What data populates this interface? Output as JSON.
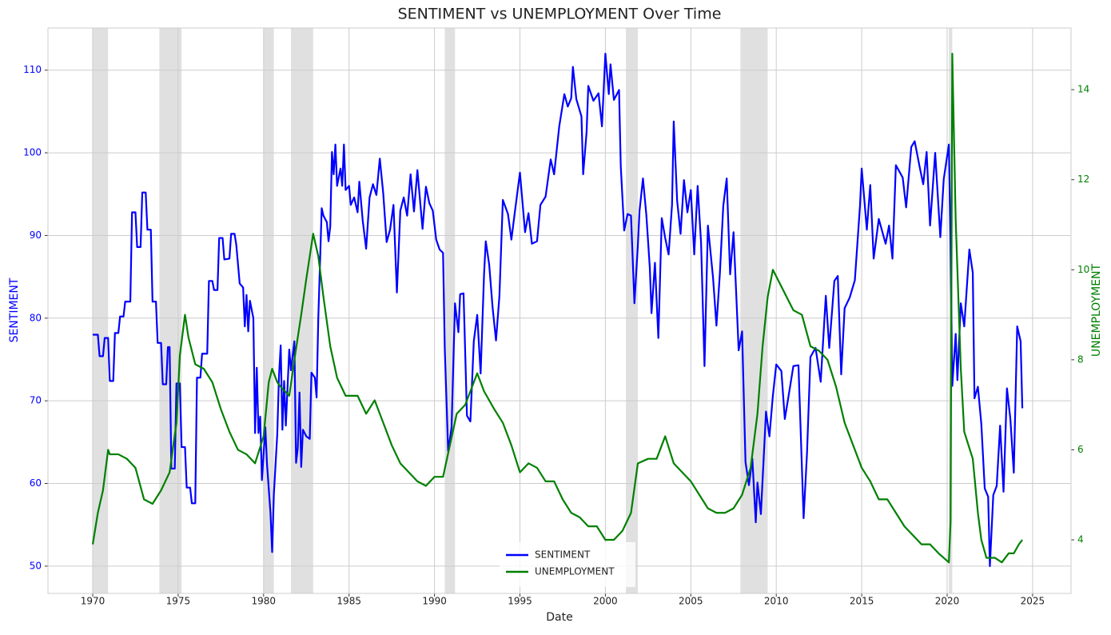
{
  "chart_data": {
    "type": "line",
    "title": "SENTIMENT vs UNEMPLOYMENT Over Time",
    "x_label": "Date",
    "y_label": "SENTIMENT",
    "y2_label": "UNEMPLOYMENT",
    "xlim": [
      1967.38,
      2027.25
    ],
    "ylim": [
      46.7,
      115.1
    ],
    "y2lim": [
      2.81,
      15.37
    ],
    "xticks": [
      1970,
      1975,
      1980,
      1985,
      1990,
      1995,
      2000,
      2005,
      2010,
      2015,
      2020,
      2025
    ],
    "yticks": [
      50,
      60,
      70,
      80,
      90,
      100,
      110
    ],
    "y2ticks": [
      4,
      6,
      8,
      10,
      12,
      14
    ],
    "grid": true,
    "legend": "lower center",
    "recession_color": "#e0e0e0",
    "recessions": [
      [
        1970.0,
        1970.9
      ],
      [
        1973.9,
        1975.2
      ],
      [
        1980.0,
        1980.6
      ],
      [
        1981.6,
        1982.9
      ],
      [
        1990.6,
        1991.2
      ],
      [
        2001.2,
        2001.9
      ],
      [
        2007.9,
        2009.5
      ],
      [
        2020.1,
        2020.3
      ]
    ],
    "series": [
      {
        "name": "SENTIMENT",
        "color": "#0000ff",
        "axis": "y",
        "x": [
          1970.0,
          1970.3,
          1970.4,
          1970.6,
          1970.7,
          1970.9,
          1971.0,
          1971.2,
          1971.3,
          1971.5,
          1971.6,
          1971.8,
          1971.9,
          1972.2,
          1972.3,
          1972.5,
          1972.6,
          1972.8,
          1972.9,
          1973.1,
          1973.2,
          1973.4,
          1973.5,
          1973.7,
          1973.8,
          1974.0,
          1974.1,
          1974.3,
          1974.4,
          1974.5,
          1974.6,
          1974.8,
          1974.9,
          1975.1,
          1975.2,
          1975.4,
          1975.5,
          1975.7,
          1975.8,
          1976.0,
          1976.1,
          1976.3,
          1976.4,
          1976.7,
          1976.8,
          1977.0,
          1977.1,
          1977.3,
          1977.4,
          1977.6,
          1977.7,
          1978.0,
          1978.1,
          1978.3,
          1978.4,
          1978.6,
          1978.8,
          1978.9,
          1979.0,
          1979.1,
          1979.2,
          1979.4,
          1979.5,
          1979.6,
          1979.7,
          1979.8,
          1979.9,
          1980.1,
          1980.2,
          1980.4,
          1980.5,
          1980.6,
          1980.8,
          1980.9,
          1981.0,
          1981.1,
          1981.2,
          1981.3,
          1981.5,
          1981.6,
          1981.8,
          1981.9,
          1982.0,
          1982.1,
          1982.2,
          1982.3,
          1982.5,
          1982.7,
          1982.8,
          1983.0,
          1983.1,
          1983.2,
          1983.4,
          1983.5,
          1983.7,
          1983.8,
          1983.9,
          1984.0,
          1984.1,
          1984.2,
          1984.3,
          1984.5,
          1984.6,
          1984.7,
          1984.8,
          1985.0,
          1985.1,
          1985.3,
          1985.5,
          1985.6,
          1985.8,
          1986.0,
          1986.2,
          1986.4,
          1986.6,
          1986.8,
          1987.0,
          1987.2,
          1987.4,
          1987.6,
          1987.8,
          1988.0,
          1988.2,
          1988.4,
          1988.6,
          1988.8,
          1989.0,
          1989.3,
          1989.5,
          1989.7,
          1989.9,
          1990.1,
          1990.3,
          1990.5,
          1990.6,
          1990.8,
          1991.0,
          1991.2,
          1991.4,
          1991.5,
          1991.7,
          1991.9,
          1992.1,
          1992.3,
          1992.5,
          1992.7,
          1992.9,
          1993.0,
          1993.2,
          1993.4,
          1993.6,
          1993.8,
          1994.0,
          1994.3,
          1994.5,
          1994.7,
          1995.0,
          1995.3,
          1995.5,
          1995.7,
          1996.0,
          1996.2,
          1996.5,
          1996.8,
          1997.0,
          1997.3,
          1997.6,
          1997.8,
          1998.0,
          1998.1,
          1998.3,
          1998.6,
          1998.7,
          1998.9,
          1999.0,
          1999.3,
          1999.6,
          1999.8,
          2000.0,
          2000.2,
          2000.3,
          2000.5,
          2000.8,
          2000.9,
          2001.1,
          2001.3,
          2001.5,
          2001.7,
          2001.9,
          2002.0,
          2002.2,
          2002.4,
          2002.6,
          2002.7,
          2002.9,
          2003.1,
          2003.3,
          2003.5,
          2003.7,
          2003.9,
          2004.0,
          2004.2,
          2004.4,
          2004.6,
          2004.8,
          2005.0,
          2005.2,
          2005.4,
          2005.6,
          2005.8,
          2006.0,
          2006.3,
          2006.5,
          2006.7,
          2006.9,
          2007.1,
          2007.3,
          2007.5,
          2007.8,
          2008.0,
          2008.2,
          2008.4,
          2008.6,
          2008.8,
          2008.9,
          2009.1,
          2009.4,
          2009.6,
          2009.8,
          2010.0,
          2010.3,
          2010.5,
          2010.8,
          2011.0,
          2011.3,
          2011.6,
          2011.8,
          2012.0,
          2012.3,
          2012.6,
          2012.9,
          2013.1,
          2013.4,
          2013.6,
          2013.8,
          2014.0,
          2014.3,
          2014.6,
          2014.9,
          2015.0,
          2015.3,
          2015.5,
          2015.7,
          2016.0,
          2016.4,
          2016.6,
          2016.8,
          2017.0,
          2017.4,
          2017.6,
          2017.9,
          2018.1,
          2018.4,
          2018.6,
          2018.8,
          2019.0,
          2019.3,
          2019.6,
          2019.8,
          2020.1,
          2020.2,
          2020.3,
          2020.5,
          2020.6,
          2020.8,
          2021.0,
          2021.3,
          2021.5,
          2021.6,
          2021.8,
          2022.0,
          2022.2,
          2022.4,
          2022.5,
          2022.7,
          2022.9,
          2023.1,
          2023.3,
          2023.5,
          2023.7,
          2023.9,
          2024.1,
          2024.3,
          2024.4
        ],
        "values": [
          78,
          78,
          75.4,
          75.4,
          77.6,
          77.6,
          72.4,
          72.4,
          78.2,
          78.2,
          80.2,
          80.2,
          82,
          82,
          92.8,
          92.8,
          88.6,
          88.6,
          95.2,
          95.2,
          90.7,
          90.7,
          82,
          82,
          77,
          77,
          72,
          72,
          76.5,
          76.5,
          61.8,
          61.8,
          72.1,
          72.1,
          64.4,
          64.4,
          59.5,
          59.5,
          57.6,
          57.6,
          72.8,
          72.8,
          75.7,
          75.7,
          84.5,
          84.5,
          83.4,
          83.4,
          89.7,
          89.7,
          87.1,
          87.2,
          90.2,
          90.2,
          88.9,
          84.2,
          83.7,
          79,
          82.8,
          78.4,
          82.1,
          80,
          66.1,
          74,
          66.1,
          68.1,
          60.4,
          66.8,
          62.3,
          56.5,
          51.7,
          58.7,
          66,
          73,
          76.7,
          66.5,
          72.4,
          67,
          76.2,
          73.7,
          77.2,
          62.5,
          64.3,
          71,
          62,
          66.5,
          65.7,
          65.4,
          73.4,
          72.8,
          70.4,
          80,
          93.3,
          92.4,
          91.6,
          89.3,
          91.1,
          100.1,
          97.4,
          101,
          96,
          98.1,
          96,
          101,
          95.5,
          96,
          93.7,
          94.6,
          92.8,
          96.5,
          91.8,
          88.4,
          94.6,
          96.2,
          94.9,
          99.3,
          95.1,
          89.2,
          90.7,
          93.7,
          83.1,
          93,
          94.6,
          92.4,
          97.4,
          92.9,
          97.9,
          90.8,
          95.9,
          93.9,
          93,
          89.5,
          88.3,
          87.9,
          76.4,
          63.9,
          66.8,
          81.8,
          78.3,
          82.9,
          83,
          68.2,
          67.5,
          77.2,
          80.4,
          73.3,
          85.3,
          89.3,
          86.5,
          81.3,
          77.3,
          82.7,
          94.3,
          92.6,
          89.5,
          92.8,
          97.6,
          90.4,
          92.7,
          89,
          89.3,
          93.7,
          94.7,
          99.2,
          97.4,
          103.2,
          107.1,
          105.6,
          106.6,
          110.4,
          106.5,
          104.4,
          97.4,
          102.5,
          108.1,
          106.3,
          107.2,
          103.2,
          112,
          107.1,
          110.7,
          106.4,
          107.6,
          98.4,
          90.6,
          92.6,
          92.4,
          81.8,
          88.8,
          93,
          96.9,
          92.4,
          86.1,
          80.6,
          86.7,
          77.6,
          92.1,
          89.7,
          87.7,
          93.7,
          103.8,
          94.2,
          90.2,
          96.7,
          92.8,
          95.5,
          87.7,
          96,
          89.1,
          74.2,
          91.2,
          84.9,
          79.1,
          85.4,
          93.6,
          96.9,
          85.3,
          90.4,
          76.1,
          78.4,
          62.6,
          59.8,
          63,
          55.3,
          60.1,
          56.3,
          68.7,
          65.7,
          70.6,
          74.4,
          73.6,
          67.8,
          71.6,
          74.2,
          74.3,
          55.8,
          63.7,
          75.3,
          76.4,
          72.3,
          82.7,
          76.4,
          84.5,
          85.1,
          73.2,
          81.2,
          82.5,
          84.6,
          93.6,
          98.1,
          90.7,
          96.1,
          87.2,
          92,
          89,
          91.2,
          87.2,
          98.5,
          97,
          93.4,
          100.7,
          101.4,
          98.2,
          96.2,
          100.1,
          91.2,
          100,
          89.8,
          96.8,
          101,
          89.1,
          71.8,
          78.1,
          72.5,
          81.8,
          79,
          88.3,
          85.5,
          70.3,
          71.7,
          67.2,
          59.4,
          58.4,
          50,
          58.6,
          59.7,
          67,
          59,
          71.5,
          67.8,
          61.3,
          79,
          77.2,
          69.1
        ]
      },
      {
        "name": "UNEMPLOYMENT",
        "color": "#008000",
        "axis": "y2",
        "x": [
          1970.0,
          1970.3,
          1970.6,
          1970.9,
          1971.0,
          1971.5,
          1972.0,
          1972.5,
          1973.0,
          1973.5,
          1974.0,
          1974.5,
          1974.9,
          1975.1,
          1975.4,
          1975.6,
          1976.0,
          1976.5,
          1977.0,
          1977.5,
          1978.0,
          1978.5,
          1979.0,
          1979.5,
          1980.0,
          1980.3,
          1980.5,
          1980.8,
          1981.0,
          1981.5,
          1981.8,
          1982.2,
          1982.5,
          1982.9,
          1983.2,
          1983.5,
          1983.9,
          1984.3,
          1984.8,
          1985.5,
          1986.0,
          1986.5,
          1987.0,
          1987.5,
          1988.0,
          1988.5,
          1989.0,
          1989.5,
          1990.0,
          1990.5,
          1990.9,
          1991.3,
          1991.8,
          1992.5,
          1992.9,
          1993.5,
          1994.0,
          1994.5,
          1995.0,
          1995.5,
          1996.0,
          1996.5,
          1997.0,
          1997.5,
          1998.0,
          1998.5,
          1999.0,
          1999.5,
          2000.0,
          2000.5,
          2001.0,
          2001.5,
          2001.9,
          2002.5,
          2003.0,
          2003.5,
          2004.0,
          2004.5,
          2005.0,
          2005.5,
          2006.0,
          2006.5,
          2007.0,
          2007.5,
          2008.0,
          2008.5,
          2008.9,
          2009.2,
          2009.5,
          2009.8,
          2010.2,
          2010.6,
          2011.0,
          2011.5,
          2012.0,
          2012.5,
          2013.0,
          2013.5,
          2014.0,
          2014.5,
          2015.0,
          2015.5,
          2016.0,
          2016.5,
          2017.0,
          2017.5,
          2018.0,
          2018.5,
          2019.0,
          2019.5,
          2020.1,
          2020.2,
          2020.3,
          2020.5,
          2020.8,
          2021.0,
          2021.5,
          2021.8,
          2022.0,
          2022.3,
          2022.8,
          2023.2,
          2023.6,
          2023.9,
          2024.2,
          2024.4
        ],
        "values": [
          3.9,
          4.6,
          5.1,
          6.0,
          5.9,
          5.9,
          5.8,
          5.6,
          4.9,
          4.8,
          5.1,
          5.5,
          6.6,
          8.1,
          9.0,
          8.5,
          7.9,
          7.8,
          7.5,
          6.9,
          6.4,
          6.0,
          5.9,
          5.7,
          6.3,
          7.5,
          7.8,
          7.5,
          7.4,
          7.2,
          8.0,
          9.0,
          9.8,
          10.8,
          10.3,
          9.4,
          8.3,
          7.6,
          7.2,
          7.2,
          6.8,
          7.1,
          6.6,
          6.1,
          5.7,
          5.5,
          5.3,
          5.2,
          5.4,
          5.4,
          6.1,
          6.8,
          7.0,
          7.7,
          7.3,
          6.9,
          6.6,
          6.1,
          5.5,
          5.7,
          5.6,
          5.3,
          5.3,
          4.9,
          4.6,
          4.5,
          4.3,
          4.3,
          4.0,
          4.0,
          4.2,
          4.6,
          5.7,
          5.8,
          5.8,
          6.3,
          5.7,
          5.5,
          5.3,
          5.0,
          4.7,
          4.6,
          4.6,
          4.7,
          5.0,
          5.6,
          6.8,
          8.3,
          9.4,
          10.0,
          9.7,
          9.4,
          9.1,
          9.0,
          8.3,
          8.2,
          8.0,
          7.4,
          6.6,
          6.1,
          5.6,
          5.3,
          4.9,
          4.9,
          4.6,
          4.3,
          4.1,
          3.9,
          3.9,
          3.7,
          3.5,
          4.4,
          14.8,
          11.1,
          7.8,
          6.4,
          5.8,
          4.6,
          4.0,
          3.6,
          3.6,
          3.5,
          3.7,
          3.7,
          3.9,
          4.0
        ]
      }
    ]
  }
}
